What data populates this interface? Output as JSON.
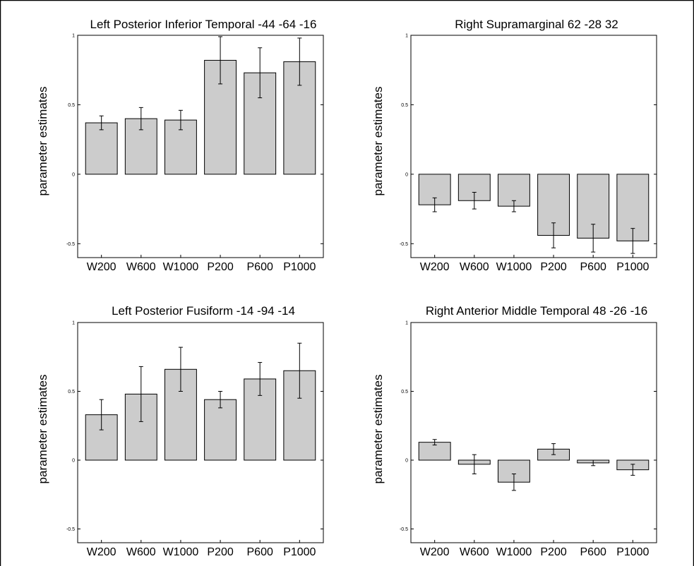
{
  "chart_data": [
    {
      "type": "bar",
      "title": "Left Posterior Inferior Temporal -44 -64 -16",
      "xlabel": "",
      "ylabel": "parameter estimates",
      "categories": [
        "W200",
        "W600",
        "W1000",
        "P200",
        "P600",
        "P1000"
      ],
      "values": [
        0.37,
        0.4,
        0.39,
        0.82,
        0.73,
        0.81
      ],
      "error": [
        0.05,
        0.08,
        0.07,
        0.17,
        0.18,
        0.17
      ],
      "ylim": [
        -0.6,
        1
      ],
      "yticks": [
        -0.5,
        0,
        0.5,
        1
      ],
      "ytick_labels": [
        "-0.5",
        "0",
        "0.5",
        "1"
      ],
      "bar_color": "#cccccc",
      "grid": false
    },
    {
      "type": "bar",
      "title": "Right Supramarginal 62 -28 32",
      "xlabel": "",
      "ylabel": "parameter estimates",
      "categories": [
        "W200",
        "W600",
        "W1000",
        "P200",
        "P600",
        "P1000"
      ],
      "values": [
        -0.22,
        -0.19,
        -0.23,
        -0.44,
        -0.46,
        -0.48
      ],
      "error": [
        0.05,
        0.06,
        0.04,
        0.09,
        0.1,
        0.09
      ],
      "ylim": [
        -0.6,
        1
      ],
      "yticks": [
        -0.5,
        0,
        0.5,
        1
      ],
      "ytick_labels": [
        "-0.5",
        "0",
        "0.5",
        "1"
      ],
      "bar_color": "#cccccc",
      "grid": false
    },
    {
      "type": "bar",
      "title": "Left Posterior Fusiform -14 -94 -14",
      "xlabel": "",
      "ylabel": "parameter estimates",
      "categories": [
        "W200",
        "W600",
        "W1000",
        "P200",
        "P600",
        "P1000"
      ],
      "values": [
        0.33,
        0.48,
        0.66,
        0.44,
        0.59,
        0.65
      ],
      "error": [
        0.11,
        0.2,
        0.16,
        0.06,
        0.12,
        0.2
      ],
      "ylim": [
        -0.6,
        1
      ],
      "yticks": [
        -0.5,
        0,
        0.5,
        1
      ],
      "ytick_labels": [
        "-0.5",
        "0",
        "0.5",
        "1"
      ],
      "bar_color": "#cccccc",
      "grid": false
    },
    {
      "type": "bar",
      "title": "Right Anterior Middle Temporal 48 -26 -16",
      "xlabel": "",
      "ylabel": "parameter estimates",
      "categories": [
        "W200",
        "W600",
        "W1000",
        "P200",
        "P600",
        "P1000"
      ],
      "values": [
        0.13,
        -0.03,
        -0.16,
        0.08,
        -0.02,
        -0.07
      ],
      "error": [
        0.02,
        0.07,
        0.06,
        0.04,
        0.02,
        0.04
      ],
      "ylim": [
        -0.6,
        1
      ],
      "yticks": [
        -0.5,
        0,
        0.5,
        1
      ],
      "ytick_labels": [
        "-0.5",
        "0",
        "0.5",
        "1"
      ],
      "bar_color": "#cccccc",
      "grid": false
    }
  ]
}
